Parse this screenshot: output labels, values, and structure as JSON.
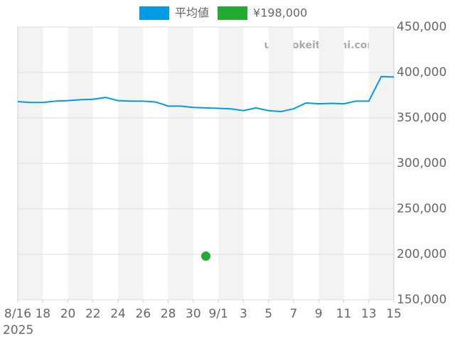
{
  "chart_data": {
    "type": "line",
    "categories": [
      "8/16",
      null,
      "18",
      null,
      "20",
      null,
      "22",
      null,
      "24",
      null,
      "26",
      null,
      "28",
      null,
      "30",
      null,
      "9/1",
      null,
      "3",
      null,
      "5",
      null,
      "7",
      null,
      "9",
      null,
      "11",
      null,
      "13",
      null,
      "15"
    ],
    "year_label": "2025",
    "watermark": "udedokeitoushi.com",
    "series": [
      {
        "name": "平均値",
        "color": "#009be3",
        "style": "line",
        "values": [
          368000,
          367000,
          367000,
          368500,
          369000,
          370000,
          370500,
          372500,
          369000,
          368500,
          368500,
          367500,
          363000,
          363000,
          361500,
          361000,
          360500,
          360000,
          358000,
          361000,
          358000,
          357000,
          360000,
          366500,
          365500,
          366000,
          365500,
          368500,
          368500,
          395500,
          395000
        ]
      },
      {
        "name": "¥198,000",
        "color": "#22aa33",
        "style": "dot",
        "values": [
          null,
          null,
          null,
          null,
          null,
          null,
          null,
          null,
          null,
          null,
          null,
          null,
          null,
          null,
          null,
          198000,
          null,
          null,
          null,
          null,
          null,
          null,
          null,
          null,
          null,
          null,
          null,
          null,
          null,
          null,
          null
        ]
      }
    ],
    "ylim": [
      150000,
      450000
    ],
    "yticks": [
      {
        "value": 150000,
        "label": "150,000"
      },
      {
        "value": 200000,
        "label": "200,000"
      },
      {
        "value": 250000,
        "label": "250,000"
      },
      {
        "value": 300000,
        "label": "300,000"
      },
      {
        "value": 350000,
        "label": "350,000"
      },
      {
        "value": 400000,
        "label": "400,000"
      },
      {
        "value": 450000,
        "label": "450,000"
      }
    ],
    "grid": true,
    "legend": "top"
  }
}
